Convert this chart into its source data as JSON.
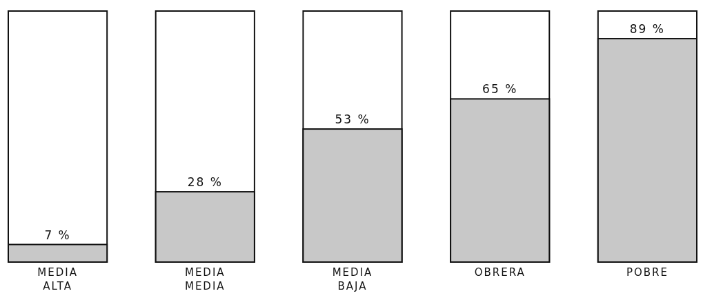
{
  "chart_data": {
    "type": "bar",
    "categories": [
      "MEDIA ALTA",
      "MEDIA MEDIA",
      "MEDIA BAJA",
      "OBRERA",
      "POBRE"
    ],
    "series": [
      {
        "color": "#c8c8c8",
        "values": [
          7,
          28,
          53,
          65,
          89
        ],
        "value_labels": [
          "7 %",
          "28 %",
          "53 %",
          "65 %",
          "89 %"
        ]
      }
    ],
    "ylim": [
      0,
      100
    ],
    "tick_labels": "x"
  }
}
